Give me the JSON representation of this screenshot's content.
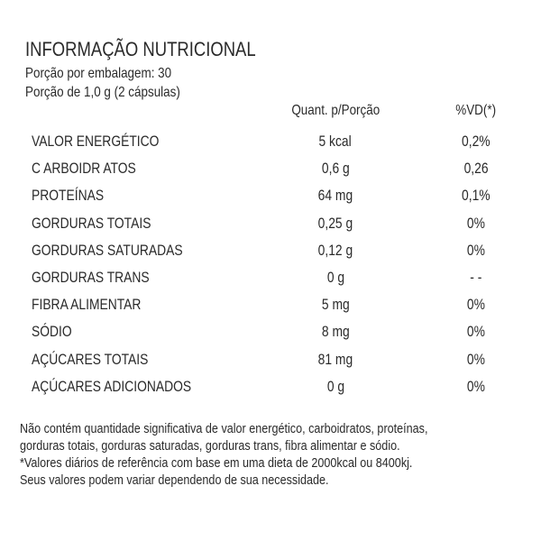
{
  "title": "INFORMAÇÃO NUTRICIONAL",
  "servings_per_package": "Porção por embalagem: 30",
  "serving_size": "Porção de 1,0 g (2 cápsulas)",
  "headers": {
    "quantity": "Quant. p/Porção",
    "dv": "%VD(*)"
  },
  "rows": [
    {
      "label": "VALOR ENERGÉTICO",
      "qty": "5 kcal",
      "dv": "0,2%"
    },
    {
      "label": "C ARBOIDR ATOS",
      "qty": "0,6 g",
      "dv": "0,26"
    },
    {
      "label": "PROTEÍNAS",
      "qty": "64 mg",
      "dv": "0,1%"
    },
    {
      "label": "GORDURAS TOTAIS",
      "qty": "0,25 g",
      "dv": "0%"
    },
    {
      "label": "GORDURAS SATURADAS",
      "qty": "0,12 g",
      "dv": "0%"
    },
    {
      "label": "GORDURAS TRANS",
      "qty": "0 g",
      "dv": "- -"
    },
    {
      "label": "FIBRA ALIMENTAR",
      "qty": "5 mg",
      "dv": "0%"
    },
    {
      "label": "SÓDIO",
      "qty": "8 mg",
      "dv": "0%"
    },
    {
      "label": "AÇÚCARES TOTAIS",
      "qty": "81 mg",
      "dv": "0%"
    },
    {
      "label": "AÇÚCARES ADICIONADOS",
      "qty": "0 g",
      "dv": "0%"
    }
  ],
  "footnotes": [
    "Não contém quantidade significativa de valor energético, carboidratos, proteínas,",
    "gorduras totais, gorduras saturadas, gorduras trans, fibra alimentar e sódio.",
    "*Valores diários de referência com base em uma dieta de 2000kcal ou 8400kj.",
    "Seus valores podem variar dependendo de sua necessidade."
  ]
}
